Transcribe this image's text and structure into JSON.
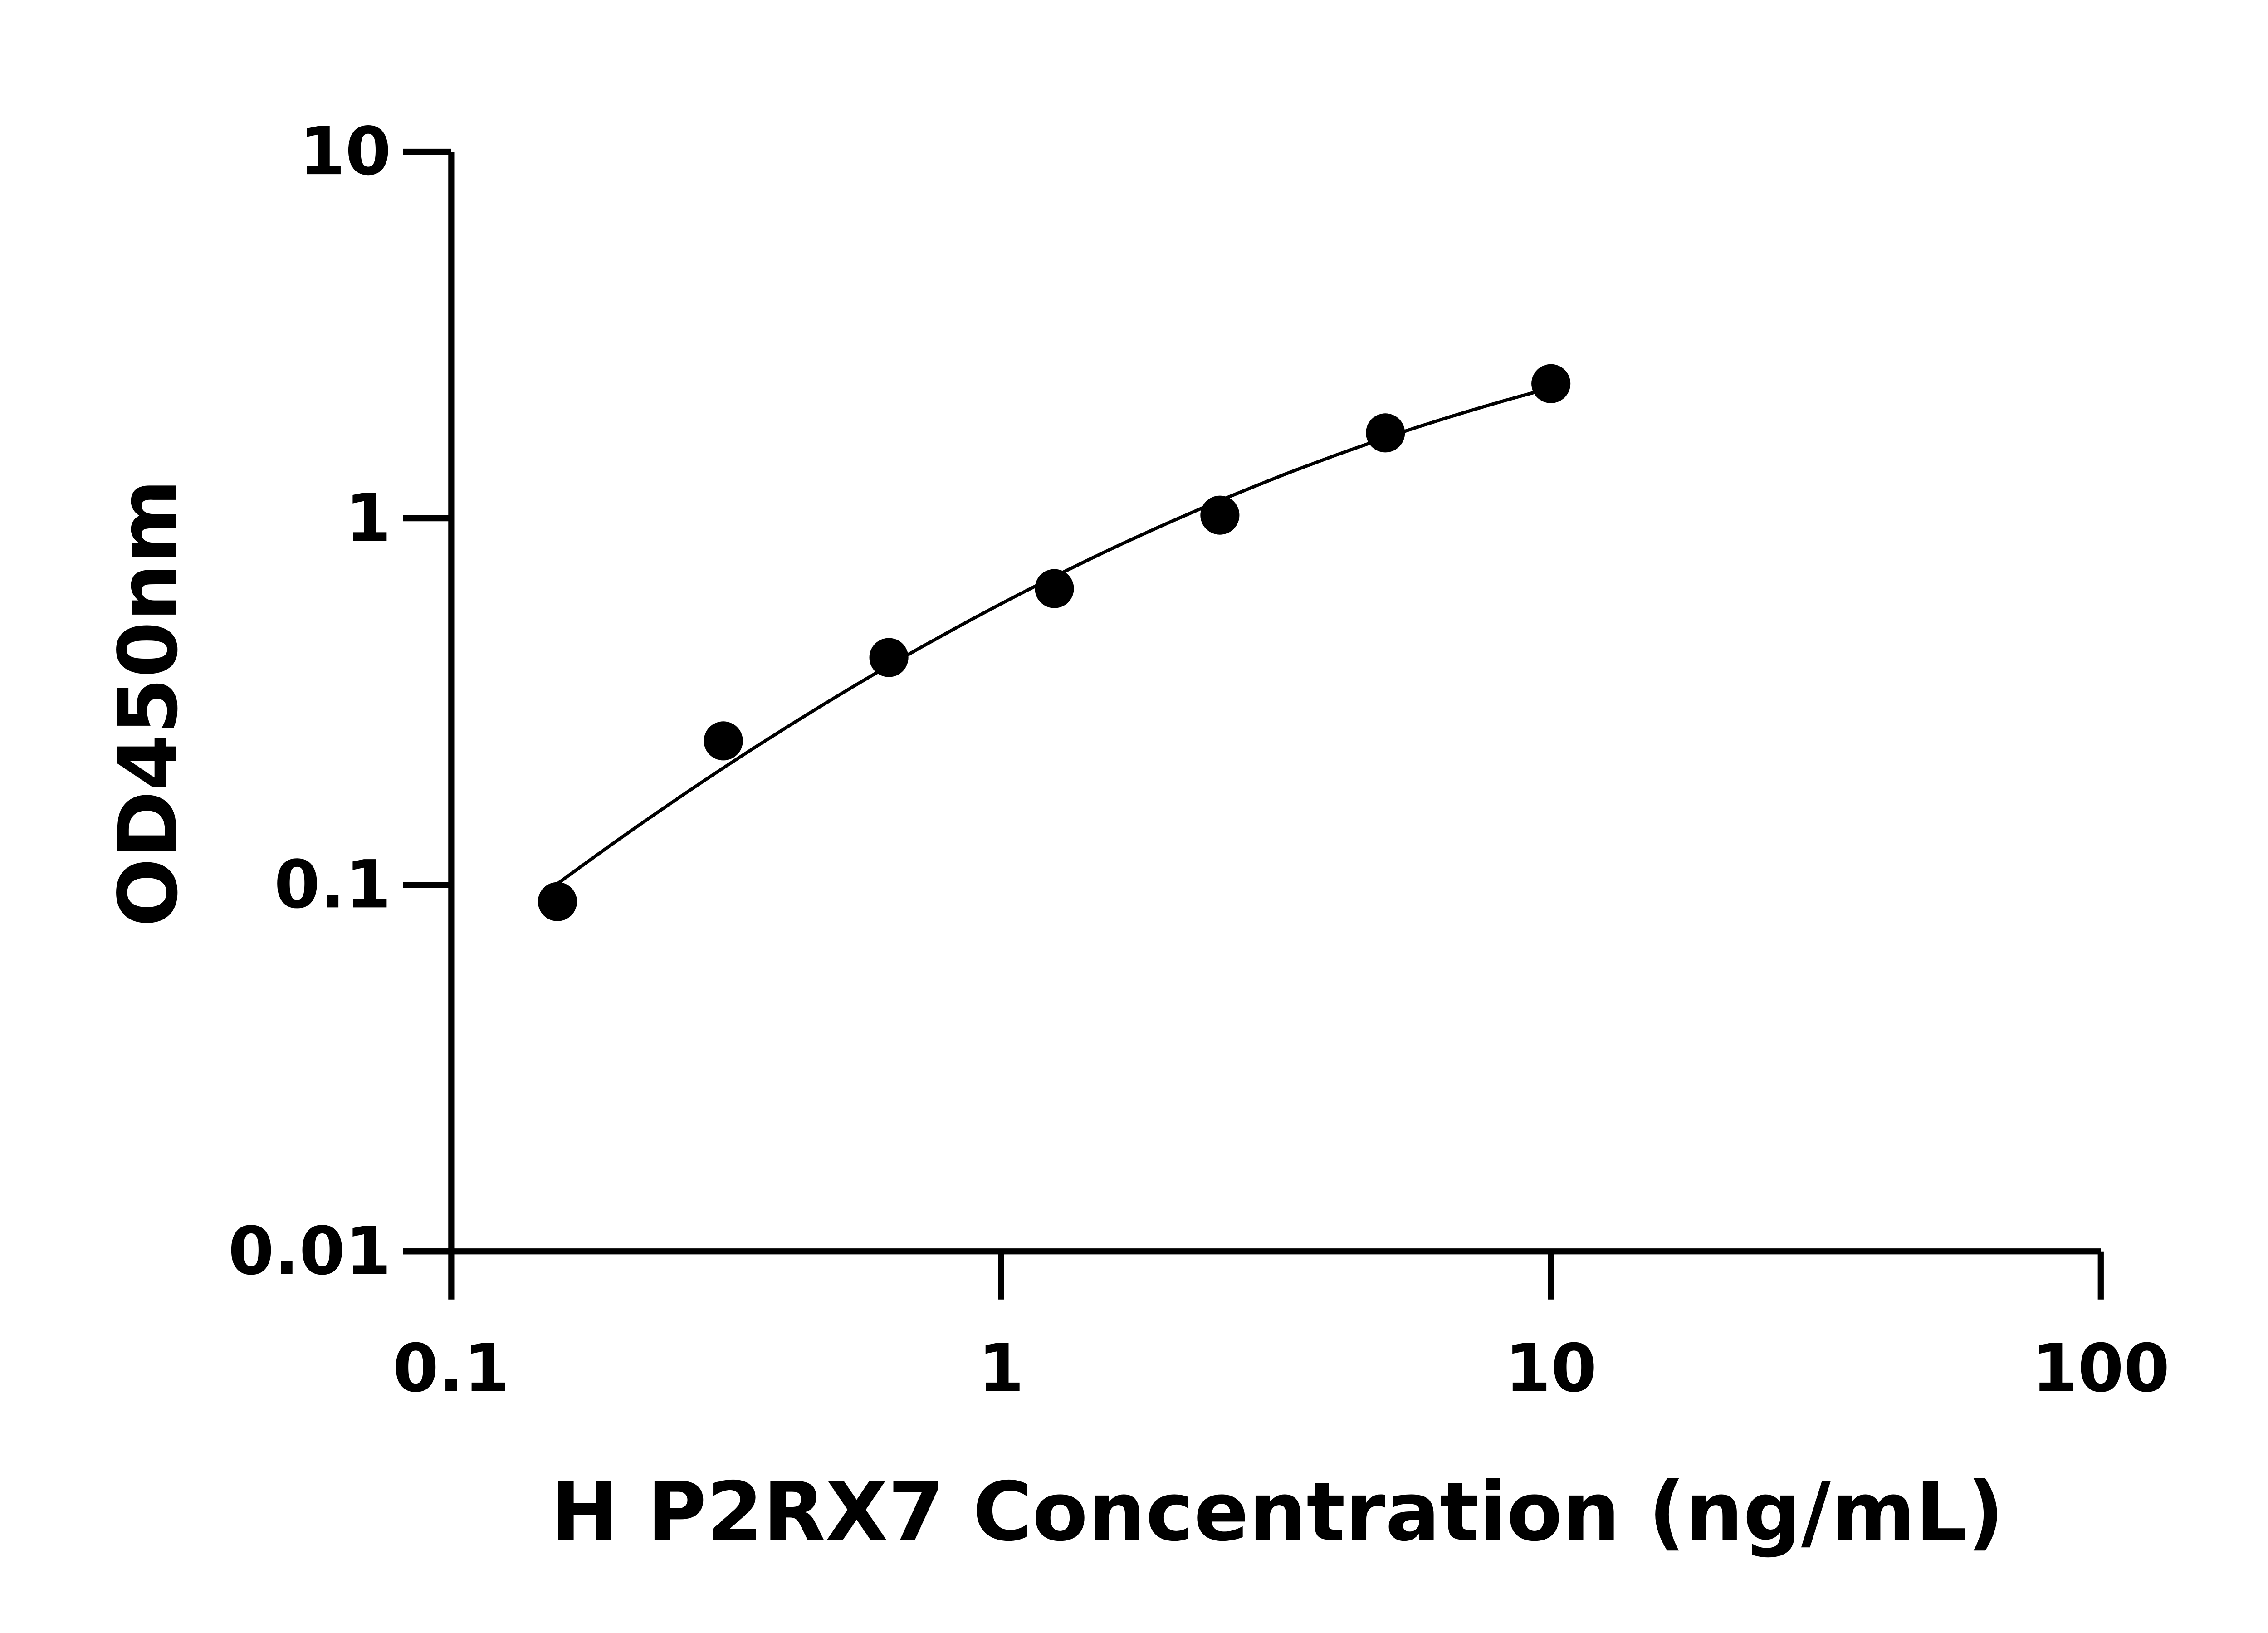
{
  "chart_data": {
    "type": "scatter",
    "title": "",
    "xlabel": "H P2RX7 Concentration (ng/mL)",
    "ylabel": "OD450nm",
    "xscale": "log",
    "yscale": "log",
    "xlim": [
      0.1,
      100
    ],
    "ylim": [
      0.01,
      10
    ],
    "xticks": [
      0.1,
      1,
      10,
      100
    ],
    "xtick_labels": [
      "0.1",
      "1",
      "10",
      "100"
    ],
    "yticks": [
      0.01,
      0.1,
      1,
      10
    ],
    "ytick_labels": [
      "0.01",
      "0.1",
      "1",
      "10"
    ],
    "grid": false,
    "fit_curve": true,
    "color": "#000000",
    "x": [
      0.156,
      0.3125,
      0.625,
      1.25,
      2.5,
      5,
      10
    ],
    "y": [
      0.09,
      0.247,
      0.417,
      0.643,
      1.02,
      1.71,
      2.33
    ]
  }
}
